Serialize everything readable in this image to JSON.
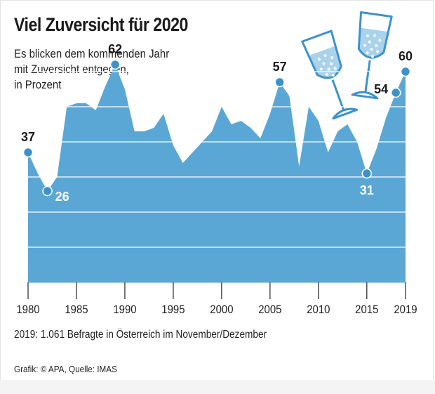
{
  "title": "Viel Zuversicht für 2020",
  "subtitle": [
    "Es blicken dem kommenden Jahr",
    "mit Zuversicht entgegen,",
    "in Prozent"
  ],
  "note": "2019: 1.061 Befragte in Österreich im November/Dezember",
  "credit": "Grafik: © APA, Quelle: IMAS",
  "colors": {
    "area": "#5aa7d5",
    "dot": "#3d92cb",
    "grid": "#ffffff",
    "dark_label": "#1a1a1a",
    "light_label": "#ffffff",
    "glass_line": "#3d92cb",
    "glass_fill": "#a9d2ec"
  },
  "chart_data": {
    "type": "area",
    "title": "Viel Zuversicht für 2020",
    "ylabel": "in Prozent",
    "xlabel": "",
    "ylim": [
      0,
      70
    ],
    "xlim": [
      1980,
      2019
    ],
    "x_ticks": [
      1980,
      1985,
      1990,
      1995,
      2000,
      2005,
      2010,
      2015,
      2019
    ],
    "grid": true,
    "series": [
      {
        "name": "Zuversicht",
        "points": [
          [
            1980,
            37
          ],
          [
            1981,
            31
          ],
          [
            1982,
            26
          ],
          [
            1983,
            30
          ],
          [
            1984,
            50
          ],
          [
            1985,
            51
          ],
          [
            1986,
            51
          ],
          [
            1987,
            49
          ],
          [
            1988,
            56
          ],
          [
            1989,
            62
          ],
          [
            1990,
            55
          ],
          [
            1991,
            43
          ],
          [
            1992,
            43
          ],
          [
            1993,
            44
          ],
          [
            1994,
            48
          ],
          [
            1995,
            39
          ],
          [
            1996,
            34
          ],
          [
            1997,
            37
          ],
          [
            1998,
            40
          ],
          [
            1999,
            43
          ],
          [
            2000,
            50
          ],
          [
            2001,
            45
          ],
          [
            2002,
            46
          ],
          [
            2003,
            44
          ],
          [
            2004,
            41
          ],
          [
            2005,
            48
          ],
          [
            2006,
            57
          ],
          [
            2007,
            53
          ],
          [
            2008,
            33
          ],
          [
            2009,
            50
          ],
          [
            2010,
            46
          ],
          [
            2011,
            37
          ],
          [
            2012,
            43
          ],
          [
            2013,
            45
          ],
          [
            2014,
            40
          ],
          [
            2015,
            31
          ],
          [
            2016,
            38
          ],
          [
            2017,
            47
          ],
          [
            2018,
            54
          ],
          [
            2019,
            60
          ]
        ]
      }
    ],
    "annotations": [
      {
        "x": 1980,
        "value": 37,
        "label": "37",
        "placement": "above",
        "style": "dark"
      },
      {
        "x": 1982,
        "value": 26,
        "label": "26",
        "placement": "right",
        "style": "light"
      },
      {
        "x": 1989,
        "value": 62,
        "label": "62",
        "placement": "above",
        "style": "dark"
      },
      {
        "x": 2006,
        "value": 57,
        "label": "57",
        "placement": "above",
        "style": "dark"
      },
      {
        "x": 2015,
        "value": 31,
        "label": "31",
        "placement": "below",
        "style": "light"
      },
      {
        "x": 2018,
        "value": 54,
        "label": "54",
        "placement": "left",
        "style": "dark"
      },
      {
        "x": 2019,
        "value": 60,
        "label": "60",
        "placement": "above",
        "style": "dark"
      }
    ]
  }
}
